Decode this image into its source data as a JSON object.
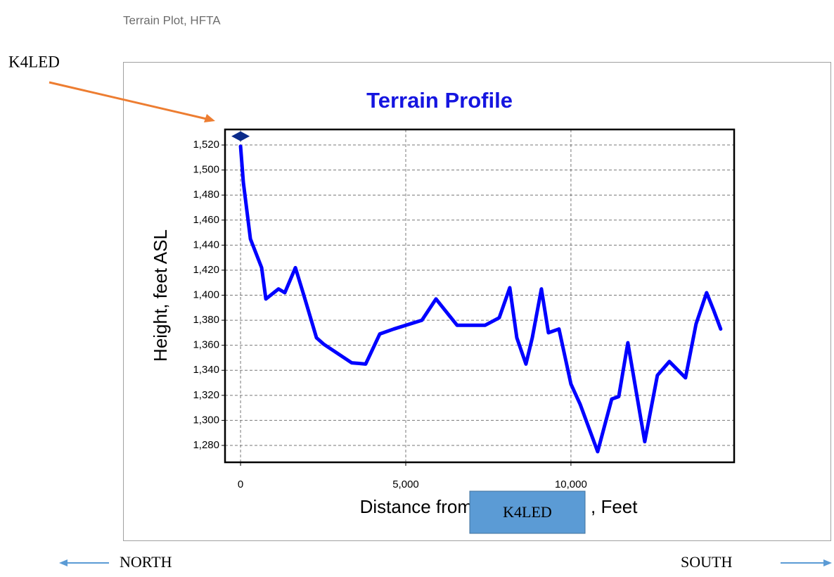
{
  "window_title": "Terrain Plot, HFTA",
  "chart_data": {
    "type": "line",
    "title": "Terrain Profile",
    "xlabel": "Distance from",
    "xlabel_highlight": "K4LED",
    "xlabel_suffix": ", Feet",
    "ylabel": "Height, feet ASL",
    "x": [
      0,
      85,
      298,
      638,
      766,
      1149,
      1340,
      1660,
      1915,
      2298,
      2511,
      3362,
      3787,
      4213,
      4638,
      5489,
      5915,
      6553,
      7404,
      7830,
      8149,
      8362,
      8638,
      8830,
      9106,
      9319,
      9638,
      10000,
      10277,
      10809,
      11234,
      11447,
      11723,
      12234,
      12617,
      12979,
      13468,
      13787,
      14106,
      14319,
      14532
    ],
    "series": [
      {
        "color": "#0000ff",
        "values": [
          1519,
          1490,
          1445,
          1422,
          1397,
          1405,
          1402,
          1422,
          1400,
          1366,
          1361,
          1346,
          1345,
          1369,
          1373,
          1380,
          1397,
          1376,
          1376,
          1382,
          1406,
          1366,
          1345,
          1366,
          1405,
          1370,
          1373,
          1329,
          1313,
          1275,
          1317,
          1319,
          1362,
          1283,
          1336,
          1347,
          1334,
          1377,
          1402,
          1388,
          1373
        ]
      }
    ],
    "marker": {
      "x": 0,
      "y": 1527,
      "color": "#0a2a8a"
    },
    "xlim": [
      -470,
      14940
    ],
    "ylim": [
      1266.5,
      1532.4
    ],
    "xticks": [
      0,
      {
        "value": 5000,
        "label": "5,000"
      },
      {
        "value": 10000,
        "label": "10,000"
      }
    ],
    "yticks": [
      {
        "value": 1280,
        "label": "1,280"
      },
      {
        "value": 1300,
        "label": "1,300"
      },
      {
        "value": 1320,
        "label": "1,320"
      },
      {
        "value": 1340,
        "label": "1,340"
      },
      {
        "value": 1360,
        "label": "1,360"
      },
      {
        "value": 1380,
        "label": "1,380"
      },
      {
        "value": 1400,
        "label": "1,400"
      },
      {
        "value": 1420,
        "label": "1,420"
      },
      {
        "value": 1440,
        "label": "1,440"
      },
      {
        "value": 1460,
        "label": "1,460"
      },
      {
        "value": 1480,
        "label": "1,480"
      },
      {
        "value": 1500,
        "label": "1,500"
      },
      {
        "value": 1520,
        "label": "1,520"
      }
    ],
    "grid": true,
    "annotations": {
      "source": "K4LED",
      "left": "NORTH",
      "right": "SOUTH"
    }
  }
}
